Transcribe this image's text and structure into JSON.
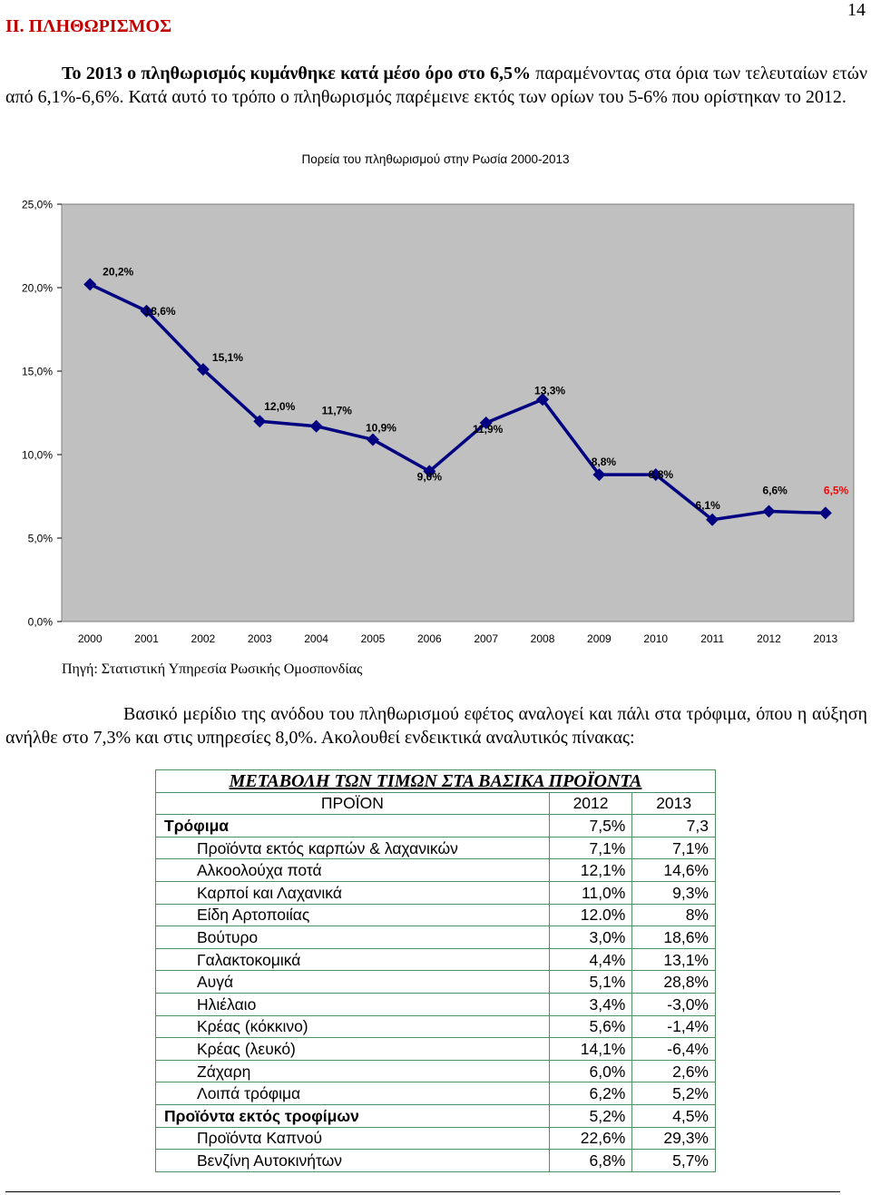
{
  "page_number": "14",
  "section_heading": "II. ΠΛΗΘΩΡΙΣΜΟΣ",
  "intro": {
    "bold": "Το 2013 ο πληθωρισμός κυμάνθηκε κατά μέσο όρο στο 6,5%",
    "rest": " παραμένοντας στα όρια των τελευταίων ετών από 6,1%-6,6%. Κατά αυτό το τρόπο ο πληθωρισμός παρέμεινε εκτός των ορίων του 5-6% που ορίστηκαν το 2012."
  },
  "chart_data": {
    "type": "line",
    "title": "Πορεία του πληθωρισμού στην Ρωσία 2000-2013",
    "x": [
      "2000",
      "2001",
      "2002",
      "2003",
      "2004",
      "2005",
      "2006",
      "2007",
      "2008",
      "2009",
      "2010",
      "2011",
      "2012",
      "2013"
    ],
    "values": [
      20.2,
      18.6,
      15.1,
      12.0,
      11.7,
      10.9,
      9.0,
      11.9,
      13.3,
      8.8,
      8.8,
      6.1,
      6.6,
      6.5
    ],
    "data_labels": [
      "20,2%",
      "18,6%",
      "15,1%",
      "12,0%",
      "11,7%",
      "10,9%",
      "9,0%",
      "11,9%",
      "13,3%",
      "8,8%",
      "8,8%",
      "6,1%",
      "6,6%",
      "6,5%"
    ],
    "y_ticks": [
      "0,0%",
      "5,0%",
      "10,0%",
      "15,0%",
      "20,0%",
      "25,0%"
    ],
    "ylim": [
      0,
      25
    ],
    "grid": false,
    "colors": {
      "line": "#000080",
      "plot_background": "#c0c0c0",
      "highlight_label": "#ff0000"
    }
  },
  "source_note": "Πηγή: Στατιστική Υπηρεσία Ρωσικής Ομοσπονδίας",
  "paragraph2": "Βασικό μερίδιο της ανόδου του πληθωρισμού εφέτος αναλογεί και πάλι στα τρόφιμα, όπου η αύξηση ανήλθε στο 7,3% και στις υπηρεσίες 8,0%. Ακολουθεί ενδεικτικά αναλυτικός πίνακας:",
  "table": {
    "title": "ΜΕΤΑΒΟΛΗ ΤΩΝ ΤΙΜΩΝ ΣΤΑ ΒΑΣΙΚΑ ΠΡΟΪΟΝΤΑ",
    "headers": [
      "ΠΡΟΪΟΝ",
      "2012",
      "2013"
    ],
    "rows": [
      {
        "name": "Τρόφιμα",
        "v2012": "7,5%",
        "v2013": "7,3",
        "kind": "category"
      },
      {
        "name": "Προϊόντα εκτός καρπών & λαχανικών",
        "v2012": "7,1%",
        "v2013": "7,1%",
        "kind": "sub"
      },
      {
        "name": "Αλκοολούχα ποτά",
        "v2012": "12,1%",
        "v2013": "14,6%",
        "kind": "sub"
      },
      {
        "name": "Καρποί και Λαχανικά",
        "v2012": "11,0%",
        "v2013": "9,3%",
        "kind": "sub"
      },
      {
        "name": "Είδη Αρτοποιίας",
        "v2012": "12.0%",
        "v2013": "8%",
        "kind": "sub"
      },
      {
        "name": "Βούτυρο",
        "v2012": "3,0%",
        "v2013": "18,6%",
        "kind": "sub"
      },
      {
        "name": "Γαλακτοκομικά",
        "v2012": "4,4%",
        "v2013": "13,1%",
        "kind": "sub"
      },
      {
        "name": "Αυγά",
        "v2012": "5,1%",
        "v2013": "28,8%",
        "kind": "sub"
      },
      {
        "name": "Ηλιέλαιο",
        "v2012": "3,4%",
        "v2013": "-3,0%",
        "kind": "sub"
      },
      {
        "name": "Κρέας (κόκκινο)",
        "v2012": "5,6%",
        "v2013": "-1,4%",
        "kind": "sub"
      },
      {
        "name": "Κρέας (λευκό)",
        "v2012": "14,1%",
        "v2013": "-6,4%",
        "kind": "sub"
      },
      {
        "name": "Ζάχαρη",
        "v2012": "6,0%",
        "v2013": "2,6%",
        "kind": "sub"
      },
      {
        "name": "Λοιπά τρόφιμα",
        "v2012": "6,2%",
        "v2013": "5,2%",
        "kind": "sub"
      },
      {
        "name": "Προϊόντα εκτός τροφίμων",
        "v2012": "5,2%",
        "v2013": "4,5%",
        "kind": "category"
      },
      {
        "name": "Προϊόντα Καπνού",
        "v2012": "22,6%",
        "v2013": "29,3%",
        "kind": "sub"
      },
      {
        "name": "Βενζίνη Αυτοκινήτων",
        "v2012": "6,8%",
        "v2013": "5,7%",
        "kind": "sub"
      }
    ]
  }
}
